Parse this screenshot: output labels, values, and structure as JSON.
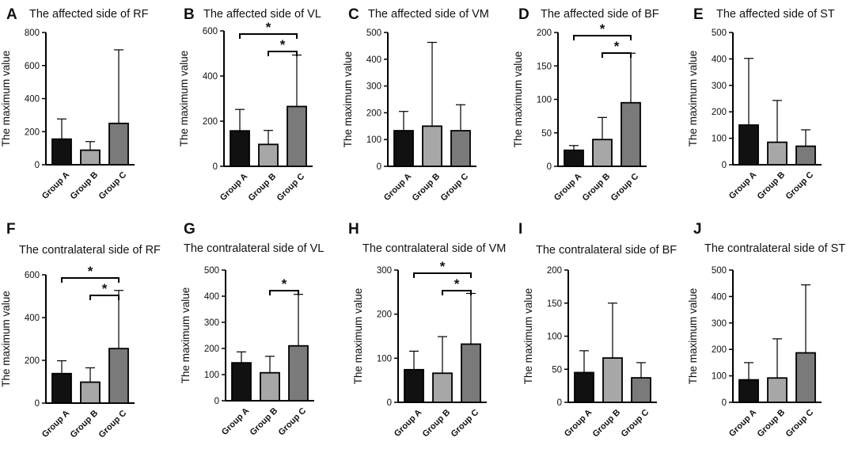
{
  "figure": {
    "ylabel": "The maximum  value",
    "colors": {
      "Group A": "#111111",
      "Group B": "#a7a7a7",
      "Group C": "#7a7a7a",
      "axis": "#000000"
    }
  },
  "chart_data": [
    {
      "type": "bar",
      "letter": "A",
      "title": "The affected side of RF",
      "categories": [
        "Group A",
        "Group B",
        "Group C"
      ],
      "values": [
        155,
        88,
        250
      ],
      "errors": [
        122,
        52,
        445
      ],
      "ylim": [
        0,
        800
      ],
      "yticks": [
        0,
        200,
        400,
        600,
        800
      ],
      "ylabel": "The maximum  value",
      "significance": []
    },
    {
      "type": "bar",
      "letter": "B",
      "title": "The affected side of VL",
      "categories": [
        "Group A",
        "Group B",
        "Group C"
      ],
      "values": [
        157,
        97,
        265
      ],
      "errors": [
        95,
        62,
        228
      ],
      "ylim": [
        0,
        600
      ],
      "yticks": [
        0,
        200,
        400,
        600
      ],
      "ylabel": "The maximum  value",
      "significance": [
        {
          "from": 0,
          "to": 2,
          "label": "*"
        },
        {
          "from": 1,
          "to": 2,
          "label": "*"
        }
      ]
    },
    {
      "type": "bar",
      "letter": "C",
      "title": "The affected side of VM",
      "categories": [
        "Group A",
        "Group B",
        "Group C"
      ],
      "values": [
        133,
        150,
        133
      ],
      "errors": [
        72,
        313,
        97
      ],
      "ylim": [
        0,
        500
      ],
      "yticks": [
        0,
        100,
        200,
        300,
        400,
        500
      ],
      "ylabel": "The maximum  value",
      "significance": []
    },
    {
      "type": "bar",
      "letter": "D",
      "title": "The affected side of BF",
      "categories": [
        "Group A",
        "Group B",
        "Group C"
      ],
      "values": [
        24,
        40,
        95
      ],
      "errors": [
        7,
        33,
        74
      ],
      "ylim": [
        0,
        200
      ],
      "yticks": [
        0,
        50,
        100,
        150,
        200
      ],
      "ylabel": "The maximum  value",
      "significance": [
        {
          "from": 0,
          "to": 2,
          "label": "*"
        },
        {
          "from": 1,
          "to": 2,
          "label": "*"
        }
      ]
    },
    {
      "type": "bar",
      "letter": "E",
      "title": "The affected side of ST",
      "categories": [
        "Group A",
        "Group B",
        "Group C"
      ],
      "values": [
        150,
        85,
        70
      ],
      "errors": [
        252,
        158,
        62
      ],
      "ylim": [
        0,
        500
      ],
      "yticks": [
        0,
        100,
        200,
        300,
        400,
        500
      ],
      "ylabel": "The maximum  value",
      "significance": []
    },
    {
      "type": "bar",
      "letter": "F",
      "title": "The contralateral side of RF",
      "categories": [
        "Group A",
        "Group B",
        "Group C"
      ],
      "values": [
        138,
        98,
        255
      ],
      "errors": [
        60,
        67,
        272
      ],
      "ylim": [
        0,
        600
      ],
      "yticks": [
        0,
        200,
        400,
        600
      ],
      "ylabel": "The maximum  value",
      "significance": [
        {
          "from": 0,
          "to": 2,
          "label": "*"
        },
        {
          "from": 1,
          "to": 2,
          "label": "*"
        }
      ]
    },
    {
      "type": "bar",
      "letter": "G",
      "title": "The contralateral side of VL",
      "categories": [
        "Group A",
        "Group B",
        "Group C"
      ],
      "values": [
        145,
        107,
        210
      ],
      "errors": [
        42,
        63,
        197
      ],
      "ylim": [
        0,
        500
      ],
      "yticks": [
        0,
        100,
        200,
        300,
        400,
        500
      ],
      "ylabel": "The maximum  value",
      "significance": [
        {
          "from": 1,
          "to": 2,
          "label": "*"
        }
      ]
    },
    {
      "type": "bar",
      "letter": "H",
      "title": "The contralateral side of VM",
      "categories": [
        "Group A",
        "Group B",
        "Group C"
      ],
      "values": [
        74,
        66,
        132
      ],
      "errors": [
        42,
        83,
        115
      ],
      "ylim": [
        0,
        300
      ],
      "yticks": [
        0,
        100,
        200,
        300
      ],
      "ylabel": "The maximum  value",
      "significance": [
        {
          "from": 0,
          "to": 2,
          "label": "*"
        },
        {
          "from": 1,
          "to": 2,
          "label": "*"
        }
      ]
    },
    {
      "type": "bar",
      "letter": "I",
      "title": "The contralateral side of BF",
      "categories": [
        "Group A",
        "Group B",
        "Group C"
      ],
      "values": [
        45,
        67,
        37
      ],
      "errors": [
        33,
        83,
        23
      ],
      "ylim": [
        0,
        200
      ],
      "yticks": [
        0,
        50,
        100,
        150,
        200
      ],
      "ylabel": "The maximum  value",
      "significance": []
    },
    {
      "type": "bar",
      "letter": "J",
      "title": "The contralateral side of ST",
      "categories": [
        "Group A",
        "Group B",
        "Group C"
      ],
      "values": [
        85,
        92,
        187
      ],
      "errors": [
        65,
        148,
        257
      ],
      "ylim": [
        0,
        500
      ],
      "yticks": [
        0,
        100,
        200,
        300,
        400,
        500
      ],
      "ylabel": "The maximum  value",
      "significance": []
    }
  ]
}
